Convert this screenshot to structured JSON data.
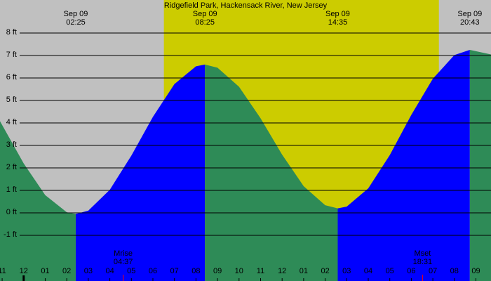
{
  "chart_data": {
    "type": "area",
    "title": "Ridgefield Park, Hackensack River, New Jersey",
    "xlim": [
      -1.1,
      21.7
    ],
    "ylim": [
      -3.03,
      9.47
    ],
    "background_color": "#c0c0c0",
    "daylight_color": "#cccc00",
    "daylight": [
      6.51,
      19.28
    ],
    "grid": true,
    "yticks": [
      {
        "value": 8,
        "label": "8 ft"
      },
      {
        "value": 7,
        "label": "7 ft"
      },
      {
        "value": 6,
        "label": "6 ft"
      },
      {
        "value": 5,
        "label": "5 ft"
      },
      {
        "value": 4,
        "label": "4 ft"
      },
      {
        "value": 3,
        "label": "3 ft"
      },
      {
        "value": 2,
        "label": "2 ft"
      },
      {
        "value": 1,
        "label": "1 ft"
      },
      {
        "value": 0,
        "label": "0 ft"
      },
      {
        "value": -1,
        "label": "-1 ft"
      }
    ],
    "xticks": [
      {
        "value": -1,
        "label": "11"
      },
      {
        "value": 0,
        "label": "12"
      },
      {
        "value": 1,
        "label": "01"
      },
      {
        "value": 2,
        "label": "02"
      },
      {
        "value": 3,
        "label": "03"
      },
      {
        "value": 4,
        "label": "04"
      },
      {
        "value": 5,
        "label": "05"
      },
      {
        "value": 6,
        "label": "06"
      },
      {
        "value": 7,
        "label": "07"
      },
      {
        "value": 8,
        "label": "08"
      },
      {
        "value": 9,
        "label": "09"
      },
      {
        "value": 10,
        "label": "10"
      },
      {
        "value": 11,
        "label": "11"
      },
      {
        "value": 12,
        "label": "12"
      },
      {
        "value": 13,
        "label": "01"
      },
      {
        "value": 14,
        "label": "02"
      },
      {
        "value": 15,
        "label": "03"
      },
      {
        "value": 16,
        "label": "04"
      },
      {
        "value": 17,
        "label": "05"
      },
      {
        "value": 18,
        "label": "06"
      },
      {
        "value": 19,
        "label": "07"
      },
      {
        "value": 20,
        "label": "08"
      },
      {
        "value": 21,
        "label": "09"
      }
    ],
    "series": [
      {
        "color": "#2e8b57",
        "x": [
          -1.1,
          0,
          1,
          2,
          2.417
        ],
        "values": [
          4.08,
          2.2,
          0.79,
          0.03,
          -0.05
        ]
      },
      {
        "color": "#0000ff",
        "x": [
          2.417,
          3,
          4,
          5,
          6,
          7,
          8,
          8.417
        ],
        "values": [
          -0.05,
          0.1,
          1.03,
          2.55,
          4.27,
          5.73,
          6.52,
          6.6
        ]
      },
      {
        "color": "#2e8b57",
        "x": [
          8.417,
          9,
          10,
          11,
          12,
          13,
          14,
          14.583
        ],
        "values": [
          6.6,
          6.46,
          5.61,
          4.21,
          2.59,
          1.19,
          0.34,
          0.2
        ]
      },
      {
        "color": "#0000ff",
        "x": [
          14.583,
          15,
          16,
          17,
          18,
          19,
          20,
          20.717
        ],
        "values": [
          0.2,
          0.28,
          1.09,
          2.57,
          4.36,
          5.97,
          7.02,
          7.25
        ]
      },
      {
        "color": "#2e8b57",
        "x": [
          20.717,
          21.7
        ],
        "values": [
          7.25,
          7.05
        ]
      }
    ],
    "events": [
      {
        "date": "Sep 09",
        "time": "02:25",
        "x": 2.417
      },
      {
        "date": "Sep 09",
        "time": "08:25",
        "x": 8.417
      },
      {
        "date": "Sep 09",
        "time": "14:35",
        "x": 14.583
      },
      {
        "date": "Sep 09",
        "time": "20:43",
        "x": 20.717
      }
    ],
    "moon": [
      {
        "label": "Mrise",
        "time": "04:37",
        "x": 4.62
      },
      {
        "label": "Mset",
        "time": "18:31",
        "x": 18.52
      }
    ]
  }
}
